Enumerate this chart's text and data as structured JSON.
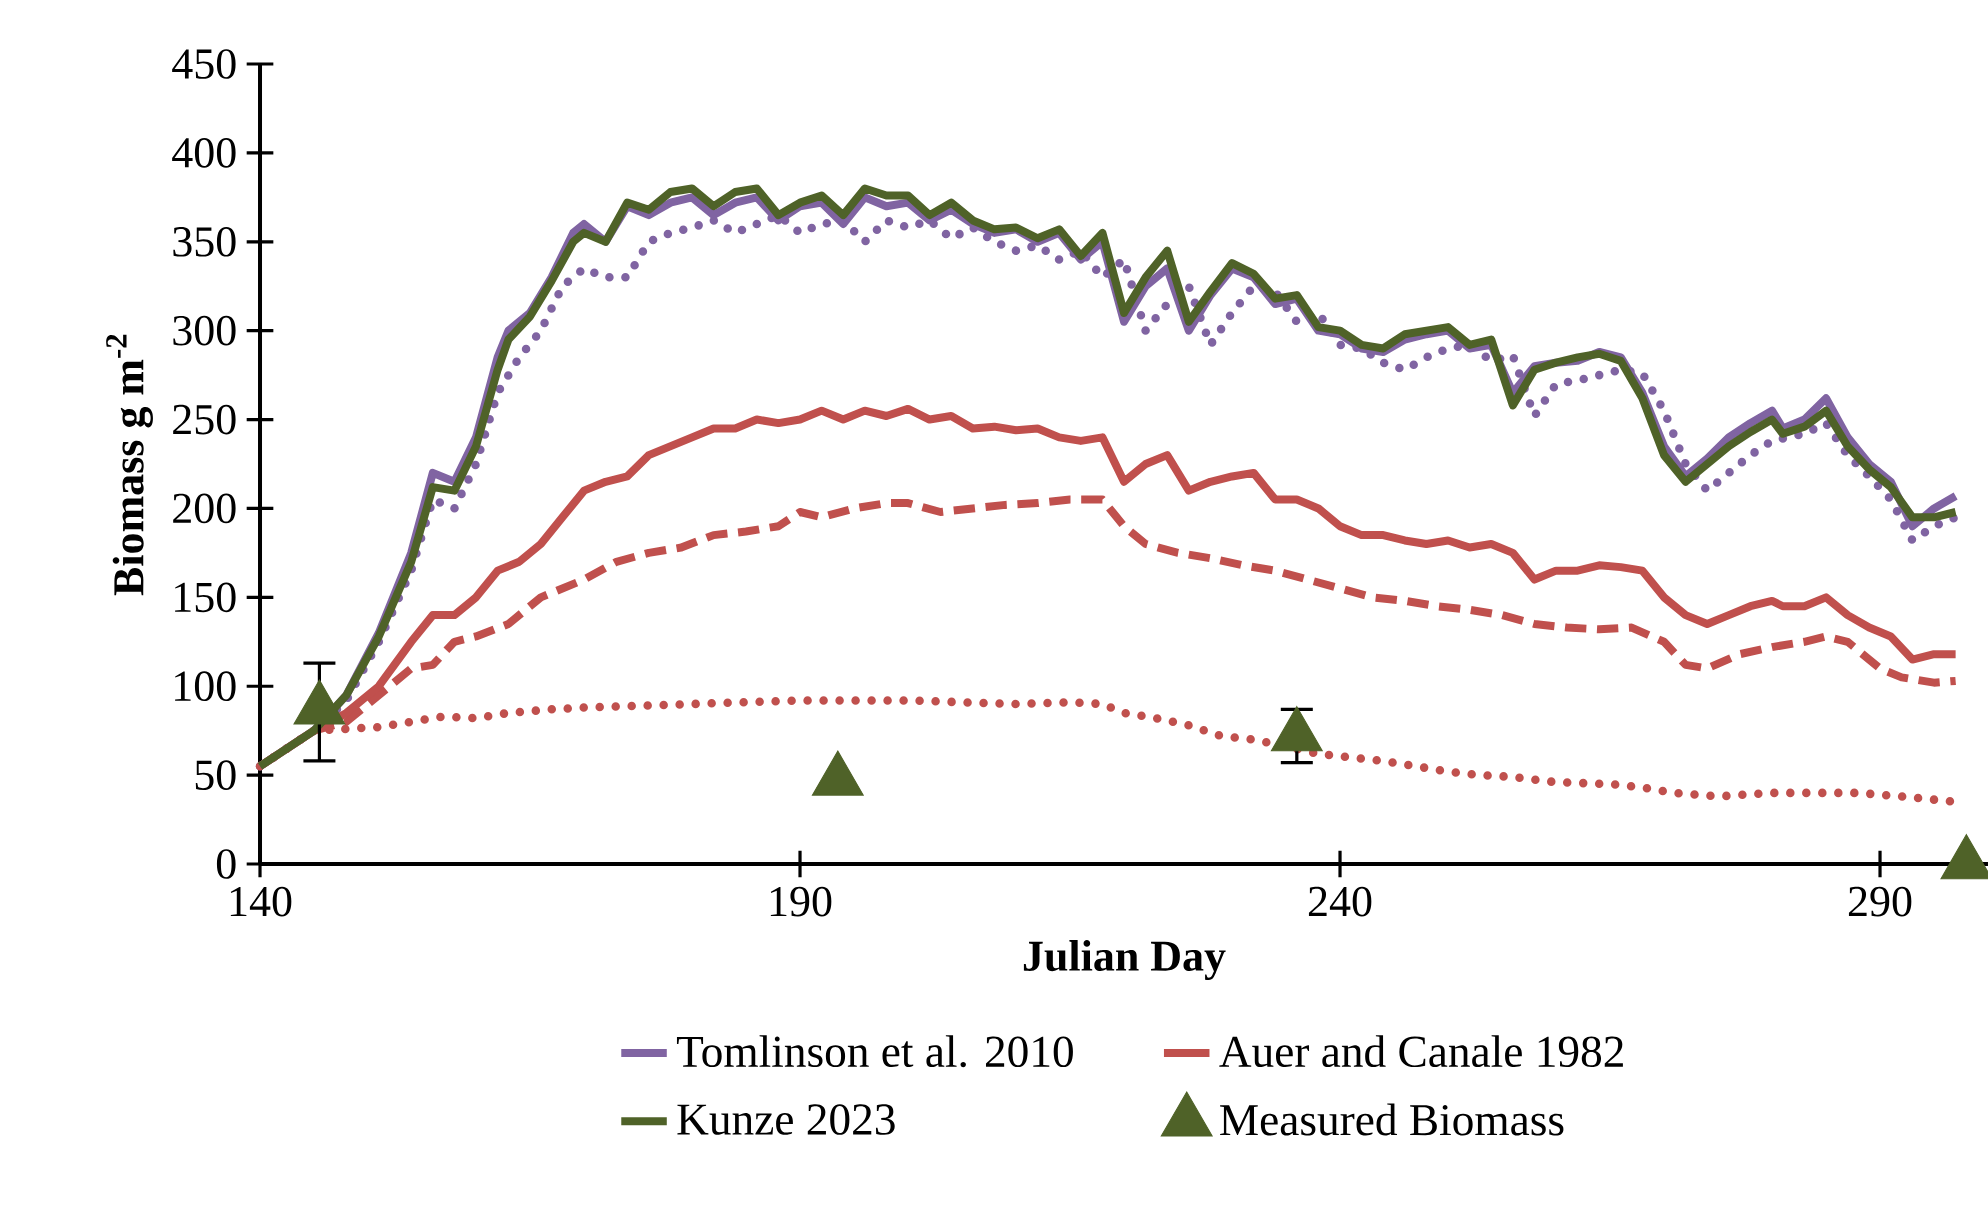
{
  "chart_data": {
    "type": "line",
    "xlabel": "Julian Day",
    "ylabel": "Biomass g m$^{-2}$",
    "xlim": [
      140,
      300
    ],
    "xticks": [
      140,
      190,
      240,
      290
    ],
    "ylim": [
      0,
      450
    ],
    "yticks": [
      0,
      50,
      100,
      150,
      200,
      250,
      300,
      350,
      400,
      450
    ],
    "grid": false,
    "legend": "bottom",
    "series": [
      {
        "name": "Tomlinson et al. 2010",
        "color": "#8064a2",
        "line_style": "solid",
        "x": [
          140,
          145,
          148,
          151,
          154,
          156,
          158,
          160,
          162,
          163,
          165,
          167,
          169,
          170,
          172,
          174,
          176,
          178,
          180,
          182,
          184,
          186,
          188,
          190,
          192,
          194,
          196,
          198,
          200,
          202,
          204,
          206,
          208,
          210,
          212,
          214,
          216,
          218,
          220,
          222,
          224,
          226,
          228,
          230,
          232,
          234,
          236,
          238,
          240,
          242,
          244,
          246,
          248,
          250,
          252,
          254,
          256,
          258,
          260,
          262,
          264,
          266,
          268,
          270,
          272,
          274,
          276,
          278,
          280,
          281,
          283,
          285,
          287,
          289,
          291,
          293,
          295,
          297
        ],
        "values": [
          55,
          75,
          95,
          130,
          175,
          220,
          215,
          240,
          285,
          300,
          310,
          330,
          355,
          360,
          350,
          370,
          365,
          372,
          375,
          365,
          372,
          375,
          362,
          370,
          372,
          360,
          375,
          370,
          372,
          362,
          368,
          360,
          355,
          357,
          350,
          355,
          340,
          350,
          305,
          325,
          335,
          300,
          320,
          335,
          330,
          315,
          318,
          300,
          298,
          290,
          288,
          295,
          298,
          300,
          290,
          292,
          265,
          280,
          282,
          283,
          288,
          285,
          265,
          235,
          218,
          228,
          240,
          248,
          255,
          245,
          250,
          262,
          240,
          225,
          215,
          190,
          200,
          207
        ]
      },
      {
        "name": "Auer and Canale 1982",
        "color": "#c0504d",
        "line_style": "solid",
        "x": [
          140,
          145,
          148,
          151,
          154,
          156,
          158,
          160,
          162,
          164,
          166,
          168,
          170,
          172,
          174,
          176,
          178,
          180,
          182,
          184,
          186,
          188,
          190,
          192,
          194,
          196,
          198,
          200,
          202,
          204,
          206,
          208,
          210,
          212,
          214,
          216,
          218,
          220,
          222,
          224,
          226,
          228,
          230,
          232,
          234,
          236,
          238,
          240,
          242,
          244,
          246,
          248,
          250,
          252,
          254,
          256,
          258,
          260,
          262,
          264,
          266,
          268,
          270,
          272,
          274,
          276,
          278,
          280,
          281,
          283,
          285,
          287,
          289,
          291,
          293,
          295,
          297
        ],
        "values": [
          55,
          75,
          85,
          100,
          125,
          140,
          140,
          150,
          165,
          170,
          180,
          195,
          210,
          215,
          218,
          230,
          235,
          240,
          245,
          245,
          250,
          248,
          250,
          255,
          250,
          255,
          252,
          256,
          250,
          252,
          245,
          246,
          244,
          245,
          240,
          238,
          240,
          215,
          225,
          230,
          210,
          215,
          218,
          220,
          205,
          205,
          200,
          190,
          185,
          185,
          182,
          180,
          182,
          178,
          180,
          175,
          160,
          165,
          165,
          168,
          167,
          165,
          150,
          140,
          135,
          140,
          145,
          148,
          145,
          145,
          150,
          140,
          133,
          128,
          115,
          118,
          118
        ]
      },
      {
        "name": "Kunze 2023",
        "color": "#4f6228",
        "line_style": "solid",
        "x": [
          140,
          145,
          148,
          151,
          154,
          156,
          158,
          160,
          162,
          163,
          165,
          167,
          169,
          170,
          172,
          174,
          176,
          178,
          180,
          182,
          184,
          186,
          188,
          190,
          192,
          194,
          196,
          198,
          200,
          202,
          204,
          206,
          208,
          210,
          212,
          214,
          216,
          218,
          220,
          222,
          224,
          226,
          228,
          230,
          232,
          234,
          236,
          238,
          240,
          242,
          244,
          246,
          248,
          250,
          252,
          254,
          256,
          258,
          260,
          262,
          264,
          266,
          268,
          270,
          272,
          274,
          276,
          278,
          280,
          281,
          283,
          285,
          287,
          289,
          291,
          293,
          295,
          297
        ],
        "values": [
          55,
          75,
          95,
          128,
          170,
          212,
          210,
          235,
          278,
          295,
          308,
          328,
          350,
          355,
          350,
          372,
          368,
          378,
          380,
          370,
          378,
          380,
          365,
          372,
          376,
          365,
          380,
          376,
          376,
          365,
          372,
          362,
          357,
          358,
          352,
          357,
          342,
          355,
          310,
          330,
          345,
          305,
          322,
          338,
          332,
          318,
          320,
          302,
          300,
          292,
          290,
          298,
          300,
          302,
          292,
          295,
          258,
          278,
          282,
          285,
          287,
          283,
          262,
          230,
          215,
          225,
          235,
          243,
          250,
          242,
          246,
          255,
          235,
          222,
          212,
          195,
          195,
          198
        ]
      },
      {
        "type": "scatter",
        "name": "Measured Biomass",
        "color": "#4f6228",
        "marker": "triangle",
        "x": [
          145.5,
          193.5,
          236,
          298
        ],
        "values": [
          87,
          47,
          72,
          0
        ],
        "errors": [
          [
            58,
            113
          ],
          null,
          15,
          null
        ]
      },
      {
        "color": "#8064a2",
        "line_style": "dotted",
        "x": [
          140,
          145,
          148,
          151,
          154,
          156,
          158,
          160,
          162,
          164,
          166,
          168,
          170,
          172,
          174,
          176,
          178,
          180,
          182,
          184,
          186,
          188,
          190,
          192,
          194,
          196,
          198,
          200,
          202,
          204,
          206,
          208,
          210,
          212,
          214,
          216,
          218,
          220,
          222,
          224,
          226,
          228,
          230,
          232,
          234,
          236,
          238,
          240,
          242,
          244,
          246,
          248,
          250,
          252,
          254,
          256,
          258,
          260,
          262,
          264,
          266,
          268,
          270,
          272,
          274,
          276,
          278,
          280,
          283,
          285,
          287,
          289,
          291,
          293,
          295,
          297
        ],
        "values": [
          55,
          75,
          92,
          125,
          165,
          205,
          200,
          225,
          265,
          285,
          300,
          325,
          335,
          330,
          330,
          350,
          355,
          358,
          362,
          355,
          360,
          365,
          355,
          360,
          362,
          350,
          362,
          358,
          362,
          352,
          358,
          350,
          345,
          348,
          340,
          345,
          330,
          340,
          300,
          315,
          325,
          292,
          310,
          325,
          322,
          305,
          310,
          292,
          290,
          282,
          278,
          285,
          290,
          292,
          283,
          286,
          252,
          270,
          272,
          275,
          278,
          276,
          255,
          225,
          210,
          220,
          230,
          238,
          242,
          248,
          230,
          218,
          205,
          182,
          190,
          195
        ]
      },
      {
        "color": "#c0504d",
        "line_style": "dashed",
        "x": [
          140,
          145,
          148,
          151,
          154,
          156,
          158,
          160,
          163,
          166,
          168,
          170,
          173,
          176,
          179,
          182,
          185,
          188,
          190,
          192,
          195,
          198,
          200,
          203,
          206,
          209,
          212,
          215,
          218,
          220,
          222,
          225,
          228,
          231,
          234,
          237,
          240,
          243,
          246,
          249,
          252,
          255,
          258,
          261,
          264,
          267,
          270,
          272,
          274,
          277,
          280,
          283,
          285,
          287,
          290,
          292,
          295,
          297
        ],
        "values": [
          55,
          75,
          80,
          95,
          110,
          112,
          125,
          128,
          135,
          150,
          155,
          160,
          170,
          175,
          178,
          185,
          187,
          190,
          198,
          195,
          200,
          203,
          203,
          198,
          200,
          202,
          203,
          205,
          205,
          190,
          180,
          175,
          172,
          168,
          165,
          160,
          155,
          150,
          148,
          145,
          143,
          140,
          135,
          133,
          132,
          133,
          125,
          112,
          110,
          118,
          122,
          125,
          128,
          125,
          110,
          105,
          102,
          103
        ]
      },
      {
        "color": "#c0504d",
        "line_style": "dotted",
        "x": [
          140,
          145,
          148,
          151,
          154,
          157,
          160,
          163,
          167,
          170,
          175,
          180,
          185,
          190,
          195,
          200,
          205,
          210,
          215,
          218,
          220,
          223,
          226,
          229,
          232,
          235,
          238,
          241,
          244,
          247,
          250,
          253,
          256,
          260,
          265,
          268,
          271,
          275,
          280,
          285,
          288,
          292,
          297
        ],
        "values": [
          55,
          75,
          76,
          77,
          80,
          83,
          82,
          85,
          87,
          88,
          89,
          90,
          91,
          92,
          92,
          92,
          91,
          90,
          91,
          90,
          85,
          82,
          78,
          72,
          70,
          66,
          62,
          60,
          58,
          55,
          52,
          50,
          49,
          46,
          45,
          43,
          40,
          38,
          40,
          40,
          40,
          38,
          35
        ]
      }
    ]
  }
}
